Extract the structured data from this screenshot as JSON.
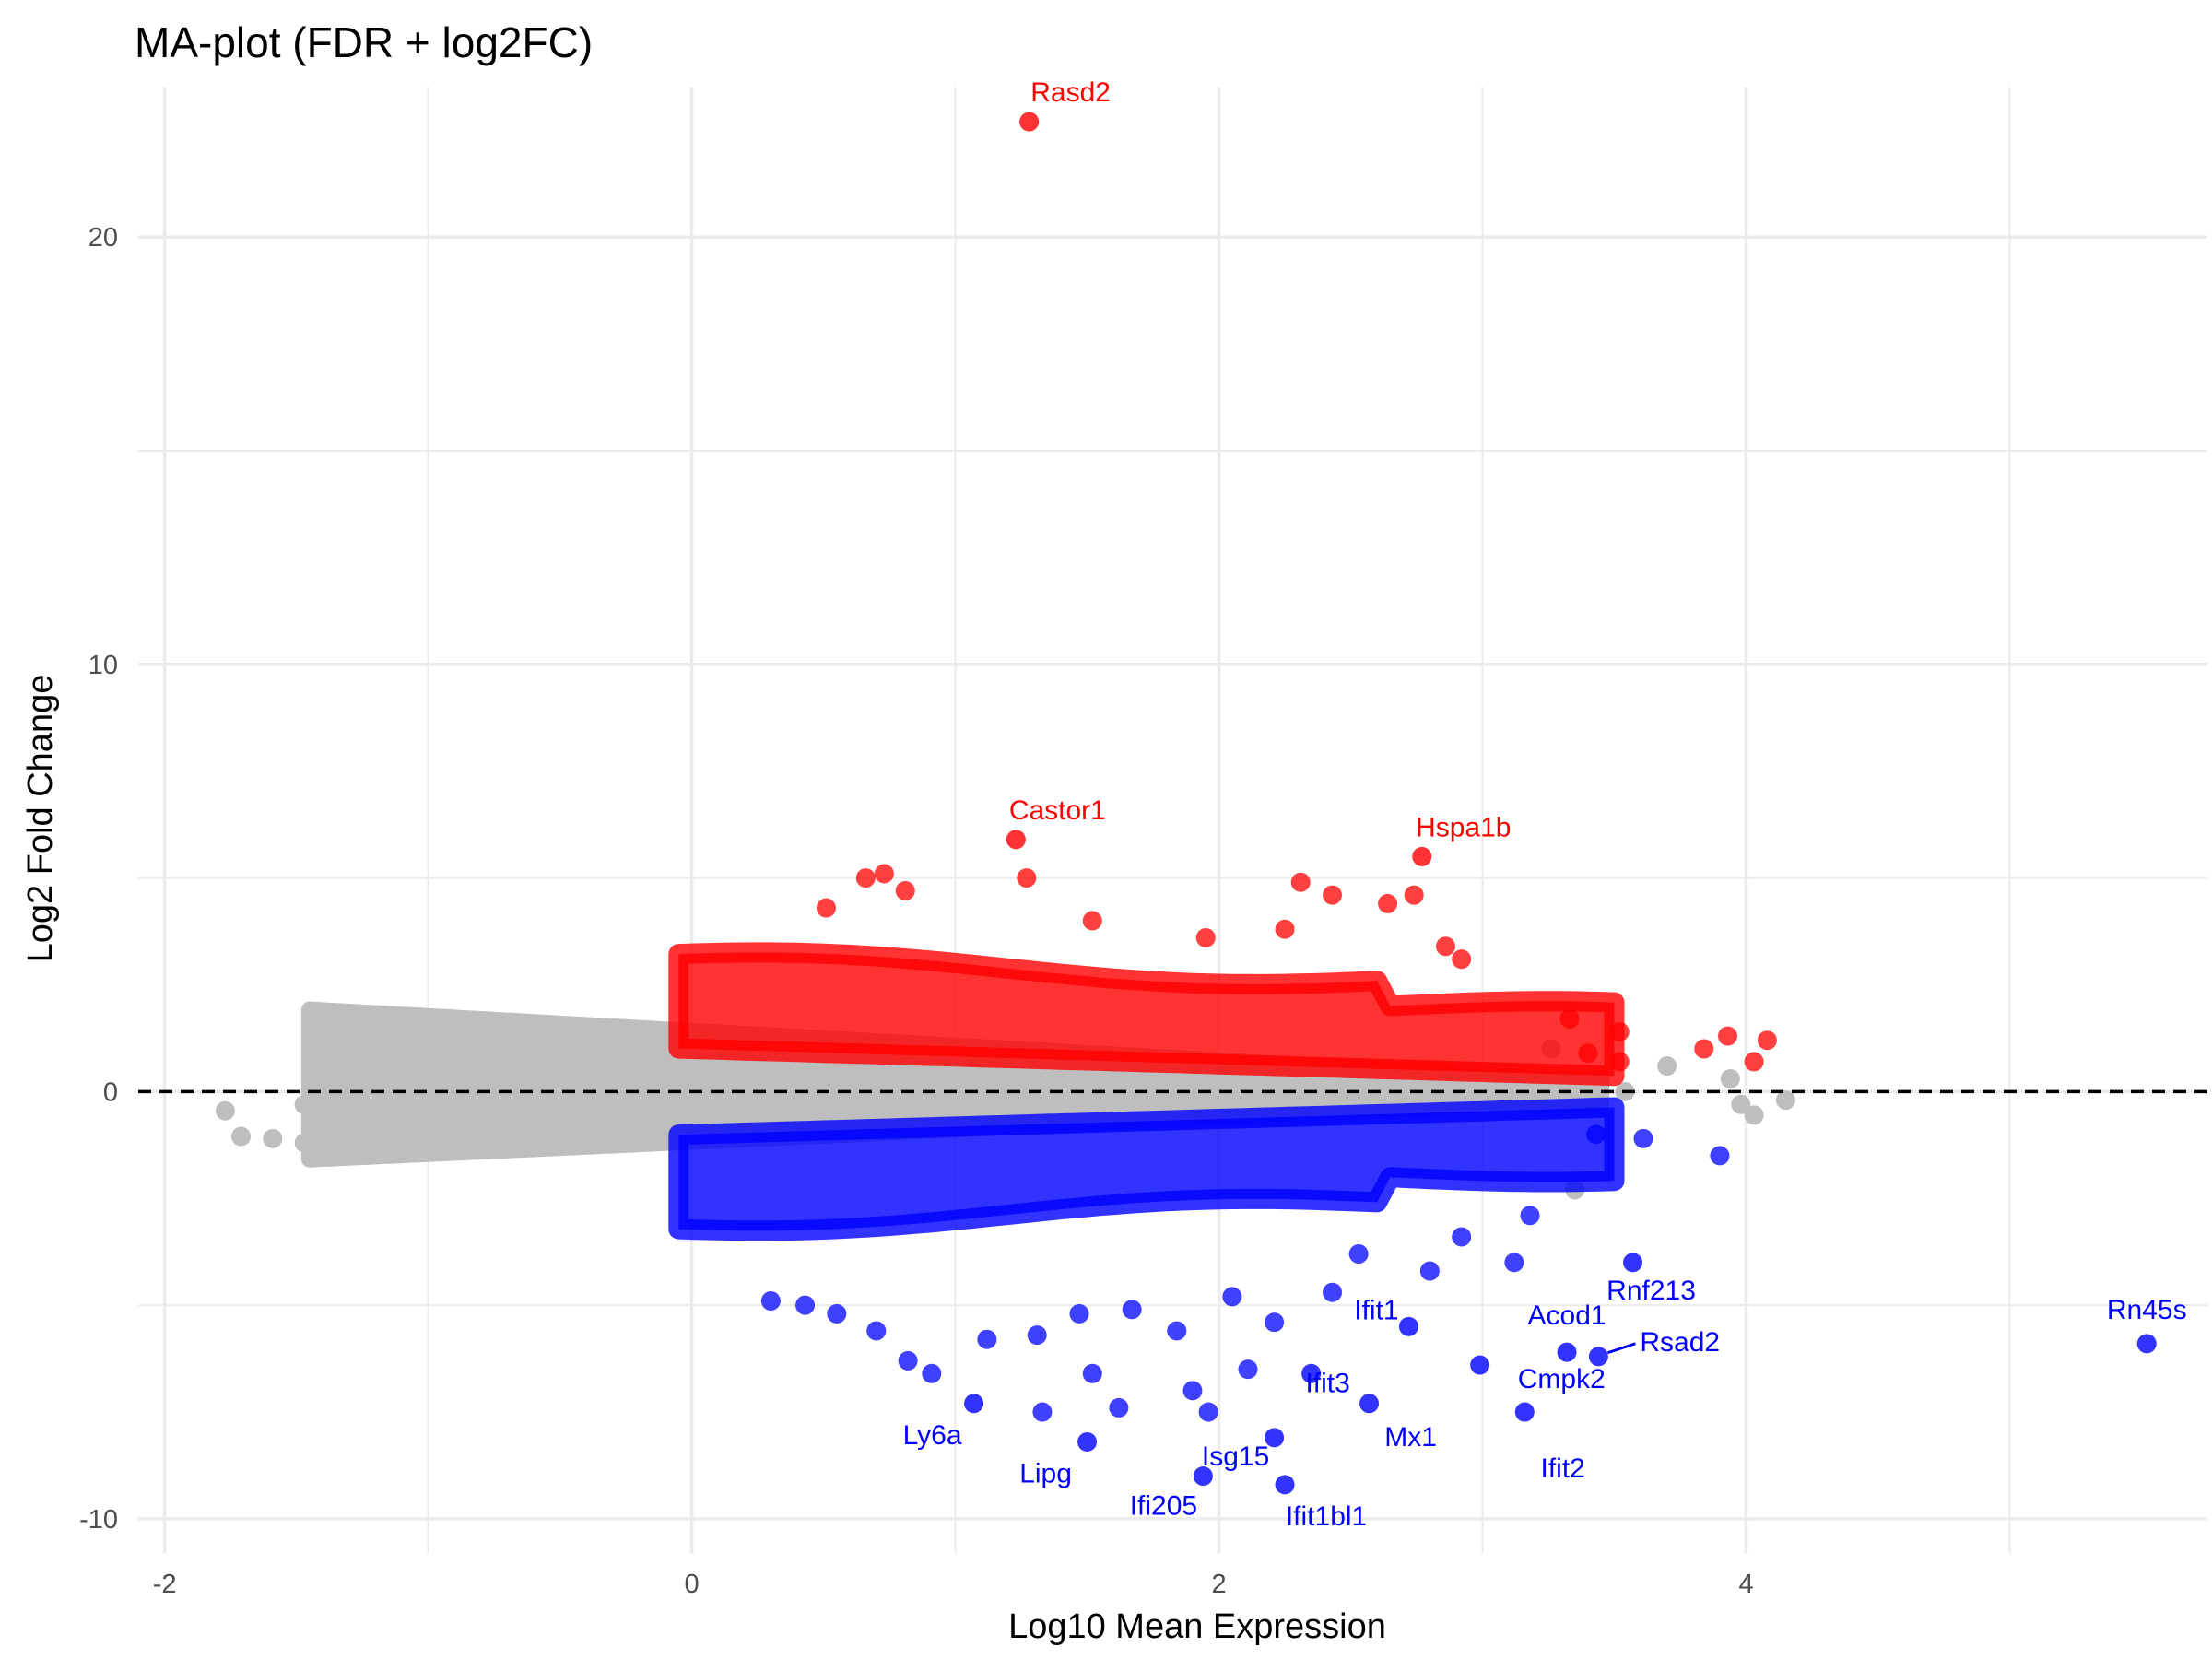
{
  "chart_data": {
    "type": "scatter",
    "title": "MA-plot (FDR + log2FC)",
    "xlabel": "Log10 Mean Expression",
    "ylabel": "Log2 Fold Change",
    "xlim": [
      -2.1,
      5.75
    ],
    "ylim": [
      -10.8,
      23.5
    ],
    "xticks": [
      -2,
      0,
      2,
      4
    ],
    "yticks": [
      -10,
      0,
      10,
      20
    ],
    "grid": true,
    "reference_line": {
      "y": 0,
      "style": "dashed"
    },
    "colors": {
      "up": "#ff0000",
      "down": "#0000ff",
      "ns": "#bebebe",
      "grid": "#ebebeb"
    },
    "labeled_points": [
      {
        "gene": "Rasd2",
        "x": 1.28,
        "y": 22.7,
        "group": "up"
      },
      {
        "gene": "Castor1",
        "x": 1.23,
        "y": 5.9,
        "group": "up"
      },
      {
        "gene": "Hspa1b",
        "x": 2.77,
        "y": 5.5,
        "group": "up"
      },
      {
        "gene": "Rn45s",
        "x": 5.52,
        "y": -5.9,
        "group": "down"
      },
      {
        "gene": "Rnf213",
        "x": 3.57,
        "y": -4.0,
        "group": "down"
      },
      {
        "gene": "Rsad2",
        "x": 3.44,
        "y": -6.2,
        "group": "down"
      },
      {
        "gene": "Acod1",
        "x": 3.32,
        "y": -6.1,
        "group": "down"
      },
      {
        "gene": "Cmpk2",
        "x": 3.16,
        "y": -7.5,
        "group": "down"
      },
      {
        "gene": "Ifit2",
        "x": 2.99,
        "y": -6.4,
        "group": "down"
      },
      {
        "gene": "Ifit1",
        "x": 2.72,
        "y": -5.5,
        "group": "down"
      },
      {
        "gene": "Mx1",
        "x": 2.57,
        "y": -7.3,
        "group": "down"
      },
      {
        "gene": "Ifit3",
        "x": 2.35,
        "y": -6.6,
        "group": "down"
      },
      {
        "gene": "Ifit1bl1",
        "x": 2.25,
        "y": -9.2,
        "group": "down"
      },
      {
        "gene": "Isg15",
        "x": 2.21,
        "y": -8.1,
        "group": "down"
      },
      {
        "gene": "Ifi205",
        "x": 1.94,
        "y": -9.0,
        "group": "down"
      },
      {
        "gene": "Lipg",
        "x": 1.5,
        "y": -8.2,
        "group": "down"
      },
      {
        "gene": "Ly6a",
        "x": 1.07,
        "y": -7.3,
        "group": "down"
      }
    ],
    "points": [
      {
        "x": -1.77,
        "y": -0.45,
        "group": "ns"
      },
      {
        "x": -1.71,
        "y": -1.05,
        "group": "ns"
      },
      {
        "x": -1.59,
        "y": -1.1,
        "group": "ns"
      },
      {
        "x": -1.47,
        "y": -0.3,
        "group": "ns"
      },
      {
        "x": -1.47,
        "y": -1.2,
        "group": "ns"
      },
      {
        "x": 3.7,
        "y": 0.6,
        "group": "ns"
      },
      {
        "x": 3.94,
        "y": 0.3,
        "group": "ns"
      },
      {
        "x": 4.03,
        "y": -0.55,
        "group": "ns"
      },
      {
        "x": 4.15,
        "y": -0.2,
        "group": "ns"
      },
      {
        "x": 3.98,
        "y": -0.3,
        "group": "ns"
      },
      {
        "x": 3.35,
        "y": -2.3,
        "group": "ns"
      },
      {
        "x": 3.26,
        "y": 1.0,
        "group": "ns"
      },
      {
        "x": 3.54,
        "y": 0.0,
        "group": "ns"
      },
      {
        "x": 4.08,
        "y": 1.2,
        "group": "up"
      },
      {
        "x": 4.03,
        "y": 0.7,
        "group": "up"
      },
      {
        "x": 3.93,
        "y": 1.3,
        "group": "up"
      },
      {
        "x": 3.84,
        "y": 1.0,
        "group": "up"
      },
      {
        "x": 3.52,
        "y": 1.4,
        "group": "up"
      },
      {
        "x": 3.52,
        "y": 0.7,
        "group": "up"
      },
      {
        "x": 3.33,
        "y": 1.7,
        "group": "up"
      },
      {
        "x": 3.4,
        "y": 0.9,
        "group": "up"
      },
      {
        "x": 2.92,
        "y": 3.1,
        "group": "up"
      },
      {
        "x": 2.86,
        "y": 3.4,
        "group": "up"
      },
      {
        "x": 2.74,
        "y": 4.6,
        "group": "up"
      },
      {
        "x": 2.64,
        "y": 4.4,
        "group": "up"
      },
      {
        "x": 2.43,
        "y": 4.6,
        "group": "up"
      },
      {
        "x": 2.31,
        "y": 4.9,
        "group": "up"
      },
      {
        "x": 1.27,
        "y": 5.0,
        "group": "up"
      },
      {
        "x": 0.73,
        "y": 5.1,
        "group": "up"
      },
      {
        "x": 0.66,
        "y": 5.0,
        "group": "up"
      },
      {
        "x": 0.51,
        "y": 4.3,
        "group": "up"
      },
      {
        "x": 0.81,
        "y": 4.7,
        "group": "up"
      },
      {
        "x": 1.52,
        "y": 4.0,
        "group": "up"
      },
      {
        "x": 1.95,
        "y": 3.6,
        "group": "up"
      },
      {
        "x": 2.25,
        "y": 3.8,
        "group": "up"
      },
      {
        "x": 3.9,
        "y": -1.5,
        "group": "down"
      },
      {
        "x": 3.61,
        "y": -1.1,
        "group": "down"
      },
      {
        "x": 3.43,
        "y": -1.0,
        "group": "down"
      },
      {
        "x": 3.18,
        "y": -2.9,
        "group": "down"
      },
      {
        "x": 3.12,
        "y": -4.0,
        "group": "down"
      },
      {
        "x": 2.92,
        "y": -3.4,
        "group": "down"
      },
      {
        "x": 2.8,
        "y": -4.2,
        "group": "down"
      },
      {
        "x": 2.53,
        "y": -3.8,
        "group": "down"
      },
      {
        "x": 2.43,
        "y": -4.7,
        "group": "down"
      },
      {
        "x": 2.21,
        "y": -5.4,
        "group": "down"
      },
      {
        "x": 2.05,
        "y": -4.8,
        "group": "down"
      },
      {
        "x": 1.84,
        "y": -5.6,
        "group": "down"
      },
      {
        "x": 1.67,
        "y": -5.1,
        "group": "down"
      },
      {
        "x": 1.52,
        "y": -6.6,
        "group": "down"
      },
      {
        "x": 1.47,
        "y": -5.2,
        "group": "down"
      },
      {
        "x": 1.31,
        "y": -5.7,
        "group": "down"
      },
      {
        "x": 1.12,
        "y": -5.8,
        "group": "down"
      },
      {
        "x": 0.91,
        "y": -6.6,
        "group": "down"
      },
      {
        "x": 0.82,
        "y": -6.3,
        "group": "down"
      },
      {
        "x": 0.7,
        "y": -5.6,
        "group": "down"
      },
      {
        "x": 0.55,
        "y": -5.2,
        "group": "down"
      },
      {
        "x": 0.43,
        "y": -5.0,
        "group": "down"
      },
      {
        "x": 0.3,
        "y": -4.9,
        "group": "down"
      },
      {
        "x": 1.62,
        "y": -7.4,
        "group": "down"
      },
      {
        "x": 1.9,
        "y": -7.0,
        "group": "down"
      },
      {
        "x": 2.11,
        "y": -6.5,
        "group": "down"
      },
      {
        "x": 1.96,
        "y": -7.5,
        "group": "down"
      },
      {
        "x": 1.33,
        "y": -7.5,
        "group": "down"
      }
    ],
    "legend": null
  }
}
